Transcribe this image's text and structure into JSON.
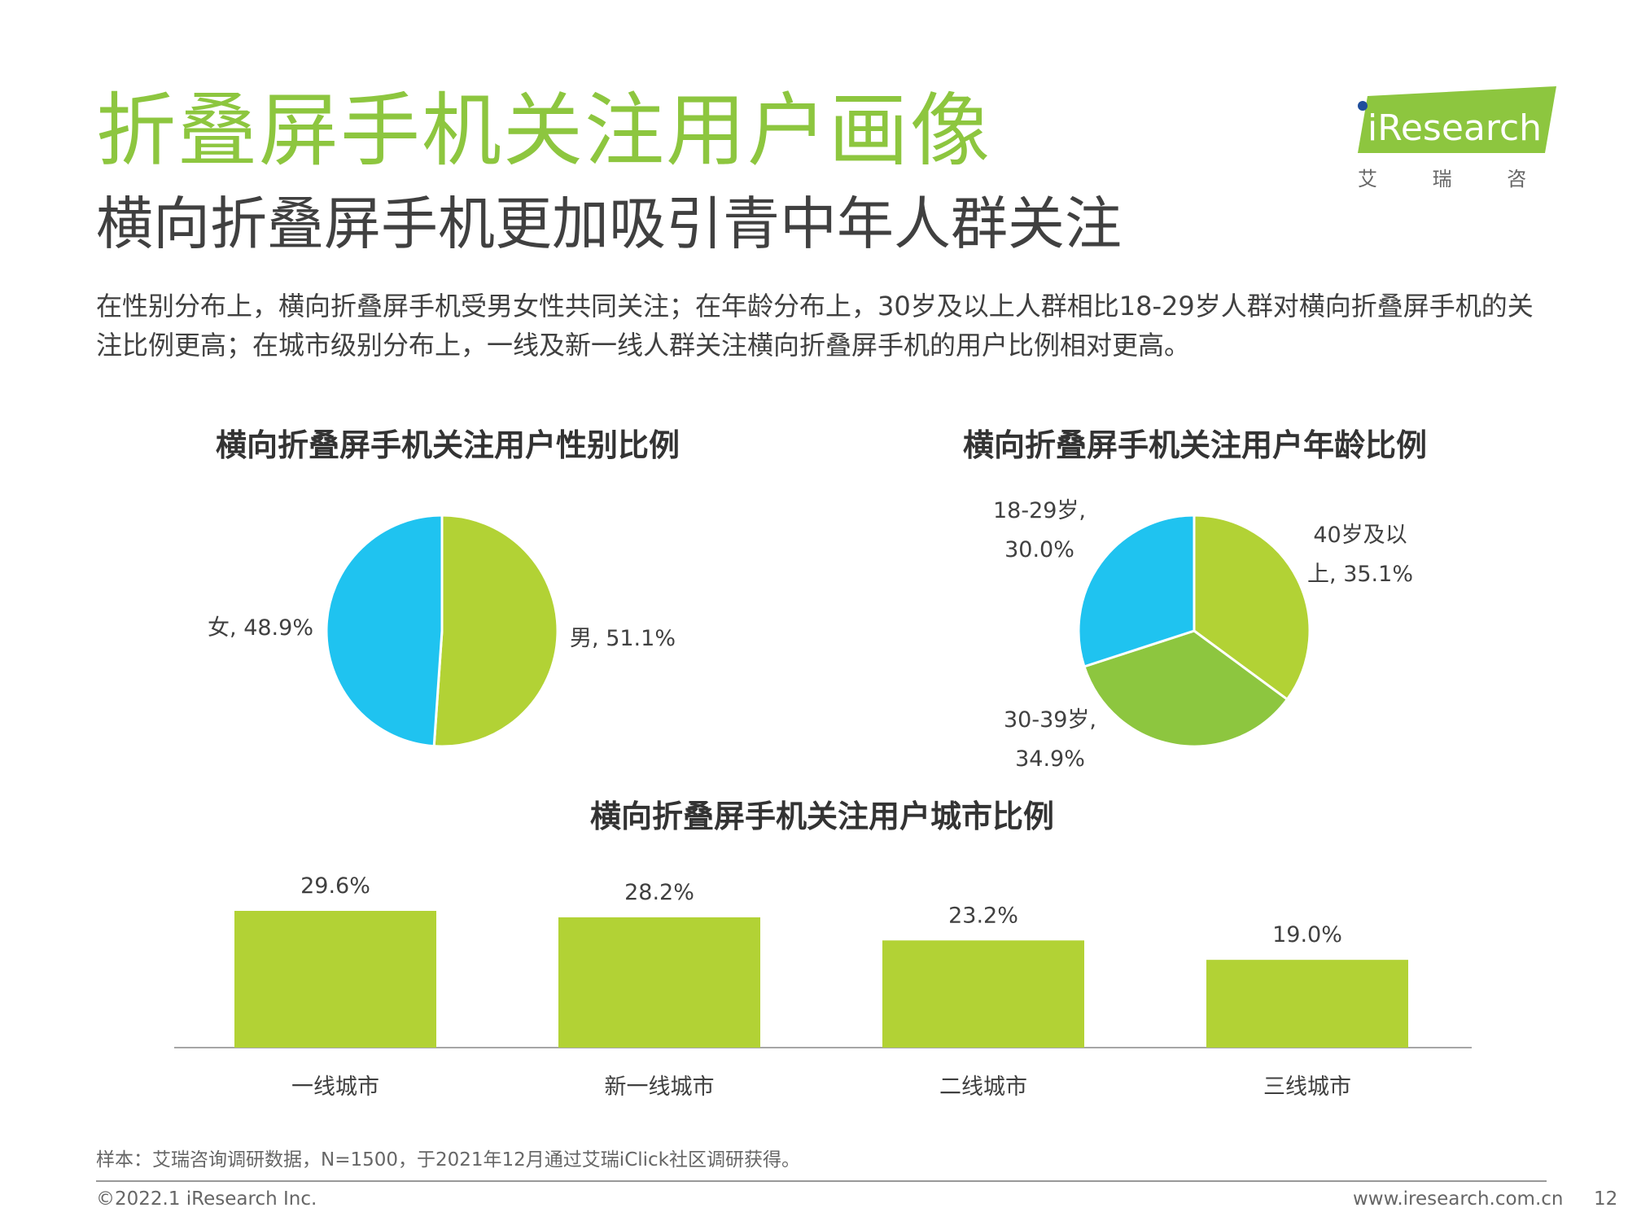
{
  "header": {
    "title": "折叠屏手机关注用户画像",
    "subtitle": "横向折叠屏手机更加吸引青中年人群关注",
    "description": "在性别分布上，横向折叠屏手机受男女性共同关注；在年龄分布上，30岁及以上人群相比18-29岁人群对横向折叠屏手机的关注比例更高；在城市级别分布上，一线及新一线人群关注横向折叠屏手机的用户比例相对更高。"
  },
  "logo": {
    "brand": "iResearch",
    "cn": "艾 瑞 咨 询"
  },
  "colors": {
    "accent_green": "#8dc63f",
    "pie_lime": "#b2d235",
    "pie_green": "#8dc63f",
    "pie_blue": "#1fc3f0",
    "bar": "#b2d235"
  },
  "chart_data": [
    {
      "type": "pie",
      "title": "横向折叠屏手机关注用户性别比例",
      "slices": [
        {
          "label": "男, 51.1%",
          "value": 51.1,
          "color": "#b2d235"
        },
        {
          "label": "女, 48.9%",
          "value": 48.9,
          "color": "#1fc3f0"
        }
      ]
    },
    {
      "type": "pie",
      "title": "横向折叠屏手机关注用户年龄比例",
      "slices": [
        {
          "label_lines": [
            "40岁及以",
            "上, 35.1%"
          ],
          "value": 35.1,
          "color": "#b2d235"
        },
        {
          "label_lines": [
            "30-39岁,",
            "34.9%"
          ],
          "value": 34.9,
          "color": "#8dc63f"
        },
        {
          "label_lines": [
            "18-29岁,",
            "30.0%"
          ],
          "value": 30.0,
          "color": "#1fc3f0"
        }
      ]
    },
    {
      "type": "bar",
      "title": "横向折叠屏手机关注用户城市比例",
      "categories": [
        "一线城市",
        "新一线城市",
        "二线城市",
        "三线城市"
      ],
      "values": [
        29.6,
        28.2,
        23.2,
        19.0
      ],
      "value_labels": [
        "29.6%",
        "28.2%",
        "23.2%",
        "19.0%"
      ],
      "color": "#b2d235"
    }
  ],
  "footer": {
    "note": "样本：艾瑞咨询调研数据，N=1500，于2021年12月通过艾瑞iClick社区调研获得。",
    "copyright": "©2022.1 iResearch Inc.",
    "website": "www.iresearch.com.cn",
    "page_number": "12"
  }
}
